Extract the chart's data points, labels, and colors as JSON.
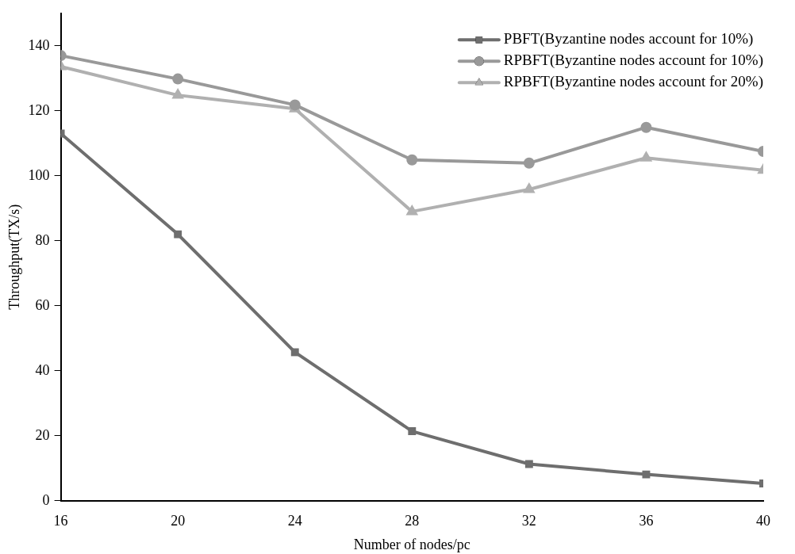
{
  "chart_data": {
    "type": "line",
    "xlabel": "Number of nodes/pc",
    "ylabel": "Throughput(TX/s)",
    "x": [
      16,
      20,
      24,
      28,
      32,
      36,
      40
    ],
    "series": [
      {
        "name": "PBFT(Byzantine nodes account for 10%)",
        "color": "#6e6e6e",
        "marker": "square",
        "values": [
          113,
          82,
          45.7,
          21.4,
          11.3,
          8.1,
          5.3
        ]
      },
      {
        "name": "RPBFT(Byzantine nodes account for 10%)",
        "color": "#999999",
        "marker": "circle",
        "values": [
          137,
          129.8,
          121.8,
          104.9,
          103.9,
          114.9,
          107.5
        ]
      },
      {
        "name": "RPBFT(Byzantine nodes account for 20%)",
        "color": "#b0b0b0",
        "marker": "triangle",
        "values": [
          133.6,
          124.8,
          120.6,
          89,
          95.8,
          105.5,
          101.7
        ]
      }
    ],
    "xlim": [
      16,
      40
    ],
    "xticks": [
      16,
      20,
      24,
      28,
      32,
      36,
      40
    ],
    "ylim": [
      0,
      150
    ],
    "yticks": [
      0,
      20,
      40,
      60,
      80,
      100,
      120,
      140
    ],
    "grid": false,
    "legend": "top right",
    "line_style": "solid"
  }
}
